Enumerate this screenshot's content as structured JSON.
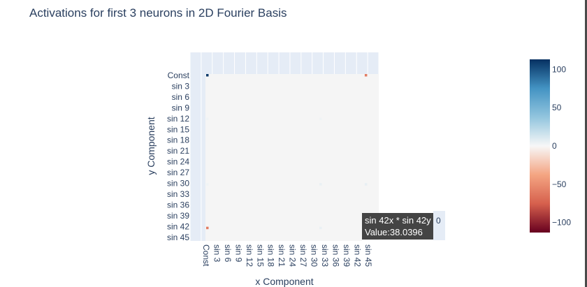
{
  "page": {
    "title": "Activations for first 3 neurons in 2D Fourier Basis"
  },
  "chart_data": {
    "type": "heatmap",
    "title": "Activations for first 3 neurons in 2D Fourier Basis",
    "xlabel": "x Component",
    "ylabel": "y Component",
    "x_ticks": [
      "Const",
      "sin 3",
      "sin 6",
      "sin 9",
      "sin 12",
      "sin 15",
      "sin 18",
      "sin 21",
      "sin 24",
      "sin 27",
      "sin 30",
      "sin 33",
      "sin 36",
      "sin 39",
      "sin 42",
      "sin 45"
    ],
    "y_ticks": [
      "Const",
      "sin 3",
      "sin 6",
      "sin 9",
      "sin 12",
      "sin 15",
      "sin 18",
      "sin 21",
      "sin 24",
      "sin 27",
      "sin 30",
      "sin 33",
      "sin 36",
      "sin 39",
      "sin 42",
      "sin 45"
    ],
    "colorscale": {
      "range": [
        -113,
        113
      ],
      "tick_values": [
        100,
        50,
        0,
        -50,
        -100
      ],
      "tick_labels": [
        "100",
        "50",
        "0",
        "−50",
        "−100"
      ],
      "colors": [
        "#67001f",
        "#d6604d",
        "#f4a582",
        "#f7f7f7",
        "#92c5de",
        "#4393c3",
        "#053061"
      ]
    },
    "notable_cells": [
      {
        "x": "Const",
        "y": "Const",
        "value": 110
      },
      {
        "x": "sin 42",
        "y": "Const",
        "value": -60
      },
      {
        "x": "Const",
        "y": "sin 42",
        "value": -60
      },
      {
        "x": "sin 42",
        "y": "sin 42",
        "value": 38.0396
      },
      {
        "x": "sin 42",
        "y": "sin 30",
        "value": 6
      },
      {
        "x": "sin 30",
        "y": "sin 30",
        "value": 5
      },
      {
        "x": "sin 30",
        "y": "sin 42",
        "value": 5
      },
      {
        "x": "sin 30",
        "y": "sin 12",
        "value": 3
      },
      {
        "x": "Const",
        "y": "sin 12",
        "value": 3
      },
      {
        "x": "Const",
        "y": "sin 30",
        "value": 3
      }
    ],
    "hover": {
      "label": "sin 42x * sin 42y",
      "value_text": "Value:38.0396",
      "extra": "0"
    }
  }
}
